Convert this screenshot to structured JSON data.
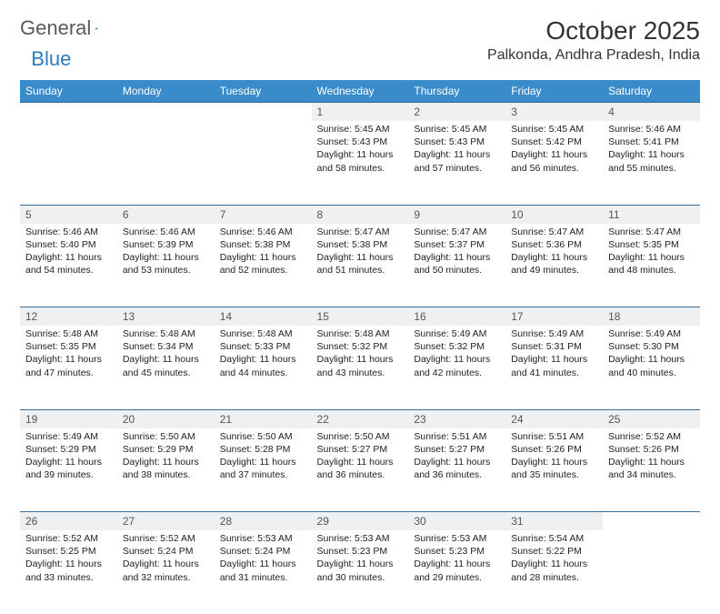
{
  "brand": {
    "part1": "General",
    "part2": "Blue"
  },
  "title": "October 2025",
  "location": "Palkonda, Andhra Pradesh, India",
  "colors": {
    "header_bg": "#3a8bc9",
    "header_text": "#ffffff",
    "row_border": "#3a6b94",
    "daynum_bg": "#eef0f1",
    "brand_gray": "#5a5a5a",
    "brand_blue": "#2b7bbf",
    "page_bg": "#ffffff"
  },
  "weekdays": [
    "Sunday",
    "Monday",
    "Tuesday",
    "Wednesday",
    "Thursday",
    "Friday",
    "Saturday"
  ],
  "weeks": [
    {
      "nums": [
        "",
        "",
        "",
        "1",
        "2",
        "3",
        "4"
      ],
      "cells": [
        null,
        null,
        null,
        {
          "sunrise": "5:45 AM",
          "sunset": "5:43 PM",
          "daylight": "11 hours and 58 minutes."
        },
        {
          "sunrise": "5:45 AM",
          "sunset": "5:43 PM",
          "daylight": "11 hours and 57 minutes."
        },
        {
          "sunrise": "5:45 AM",
          "sunset": "5:42 PM",
          "daylight": "11 hours and 56 minutes."
        },
        {
          "sunrise": "5:46 AM",
          "sunset": "5:41 PM",
          "daylight": "11 hours and 55 minutes."
        }
      ]
    },
    {
      "nums": [
        "5",
        "6",
        "7",
        "8",
        "9",
        "10",
        "11"
      ],
      "cells": [
        {
          "sunrise": "5:46 AM",
          "sunset": "5:40 PM",
          "daylight": "11 hours and 54 minutes."
        },
        {
          "sunrise": "5:46 AM",
          "sunset": "5:39 PM",
          "daylight": "11 hours and 53 minutes."
        },
        {
          "sunrise": "5:46 AM",
          "sunset": "5:38 PM",
          "daylight": "11 hours and 52 minutes."
        },
        {
          "sunrise": "5:47 AM",
          "sunset": "5:38 PM",
          "daylight": "11 hours and 51 minutes."
        },
        {
          "sunrise": "5:47 AM",
          "sunset": "5:37 PM",
          "daylight": "11 hours and 50 minutes."
        },
        {
          "sunrise": "5:47 AM",
          "sunset": "5:36 PM",
          "daylight": "11 hours and 49 minutes."
        },
        {
          "sunrise": "5:47 AM",
          "sunset": "5:35 PM",
          "daylight": "11 hours and 48 minutes."
        }
      ]
    },
    {
      "nums": [
        "12",
        "13",
        "14",
        "15",
        "16",
        "17",
        "18"
      ],
      "cells": [
        {
          "sunrise": "5:48 AM",
          "sunset": "5:35 PM",
          "daylight": "11 hours and 47 minutes."
        },
        {
          "sunrise": "5:48 AM",
          "sunset": "5:34 PM",
          "daylight": "11 hours and 45 minutes."
        },
        {
          "sunrise": "5:48 AM",
          "sunset": "5:33 PM",
          "daylight": "11 hours and 44 minutes."
        },
        {
          "sunrise": "5:48 AM",
          "sunset": "5:32 PM",
          "daylight": "11 hours and 43 minutes."
        },
        {
          "sunrise": "5:49 AM",
          "sunset": "5:32 PM",
          "daylight": "11 hours and 42 minutes."
        },
        {
          "sunrise": "5:49 AM",
          "sunset": "5:31 PM",
          "daylight": "11 hours and 41 minutes."
        },
        {
          "sunrise": "5:49 AM",
          "sunset": "5:30 PM",
          "daylight": "11 hours and 40 minutes."
        }
      ]
    },
    {
      "nums": [
        "19",
        "20",
        "21",
        "22",
        "23",
        "24",
        "25"
      ],
      "cells": [
        {
          "sunrise": "5:49 AM",
          "sunset": "5:29 PM",
          "daylight": "11 hours and 39 minutes."
        },
        {
          "sunrise": "5:50 AM",
          "sunset": "5:29 PM",
          "daylight": "11 hours and 38 minutes."
        },
        {
          "sunrise": "5:50 AM",
          "sunset": "5:28 PM",
          "daylight": "11 hours and 37 minutes."
        },
        {
          "sunrise": "5:50 AM",
          "sunset": "5:27 PM",
          "daylight": "11 hours and 36 minutes."
        },
        {
          "sunrise": "5:51 AM",
          "sunset": "5:27 PM",
          "daylight": "11 hours and 36 minutes."
        },
        {
          "sunrise": "5:51 AM",
          "sunset": "5:26 PM",
          "daylight": "11 hours and 35 minutes."
        },
        {
          "sunrise": "5:52 AM",
          "sunset": "5:26 PM",
          "daylight": "11 hours and 34 minutes."
        }
      ]
    },
    {
      "nums": [
        "26",
        "27",
        "28",
        "29",
        "30",
        "31",
        ""
      ],
      "cells": [
        {
          "sunrise": "5:52 AM",
          "sunset": "5:25 PM",
          "daylight": "11 hours and 33 minutes."
        },
        {
          "sunrise": "5:52 AM",
          "sunset": "5:24 PM",
          "daylight": "11 hours and 32 minutes."
        },
        {
          "sunrise": "5:53 AM",
          "sunset": "5:24 PM",
          "daylight": "11 hours and 31 minutes."
        },
        {
          "sunrise": "5:53 AM",
          "sunset": "5:23 PM",
          "daylight": "11 hours and 30 minutes."
        },
        {
          "sunrise": "5:53 AM",
          "sunset": "5:23 PM",
          "daylight": "11 hours and 29 minutes."
        },
        {
          "sunrise": "5:54 AM",
          "sunset": "5:22 PM",
          "daylight": "11 hours and 28 minutes."
        },
        null
      ]
    }
  ],
  "labels": {
    "sunrise": "Sunrise:",
    "sunset": "Sunset:",
    "daylight": "Daylight:"
  }
}
